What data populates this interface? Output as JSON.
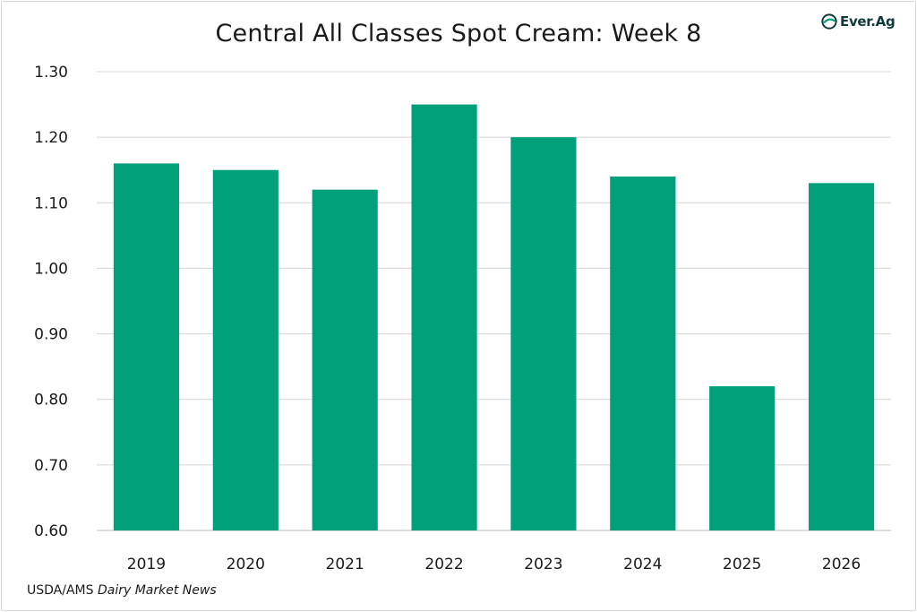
{
  "brand": {
    "name": "Ever.Ag",
    "color": "#009f7b",
    "text_color": "#123a3a"
  },
  "source": {
    "prefix": "USDA/AMS ",
    "publication": "Dairy Market News"
  },
  "chart_data": {
    "type": "bar",
    "title": "Central All Classes Spot Cream: Week 8",
    "xlabel": "",
    "ylabel": "",
    "categories": [
      "2019",
      "2020",
      "2021",
      "2022",
      "2023",
      "2024",
      "2025",
      "2026"
    ],
    "values": [
      1.16,
      1.15,
      1.12,
      1.25,
      1.2,
      1.14,
      0.82,
      1.13
    ],
    "ylim": [
      0.6,
      1.3
    ],
    "yticks": [
      "0.60",
      "0.70",
      "0.80",
      "0.90",
      "1.00",
      "1.10",
      "1.20",
      "1.30"
    ],
    "grid": true,
    "legend": "none",
    "bar_color": "#00a07b"
  }
}
